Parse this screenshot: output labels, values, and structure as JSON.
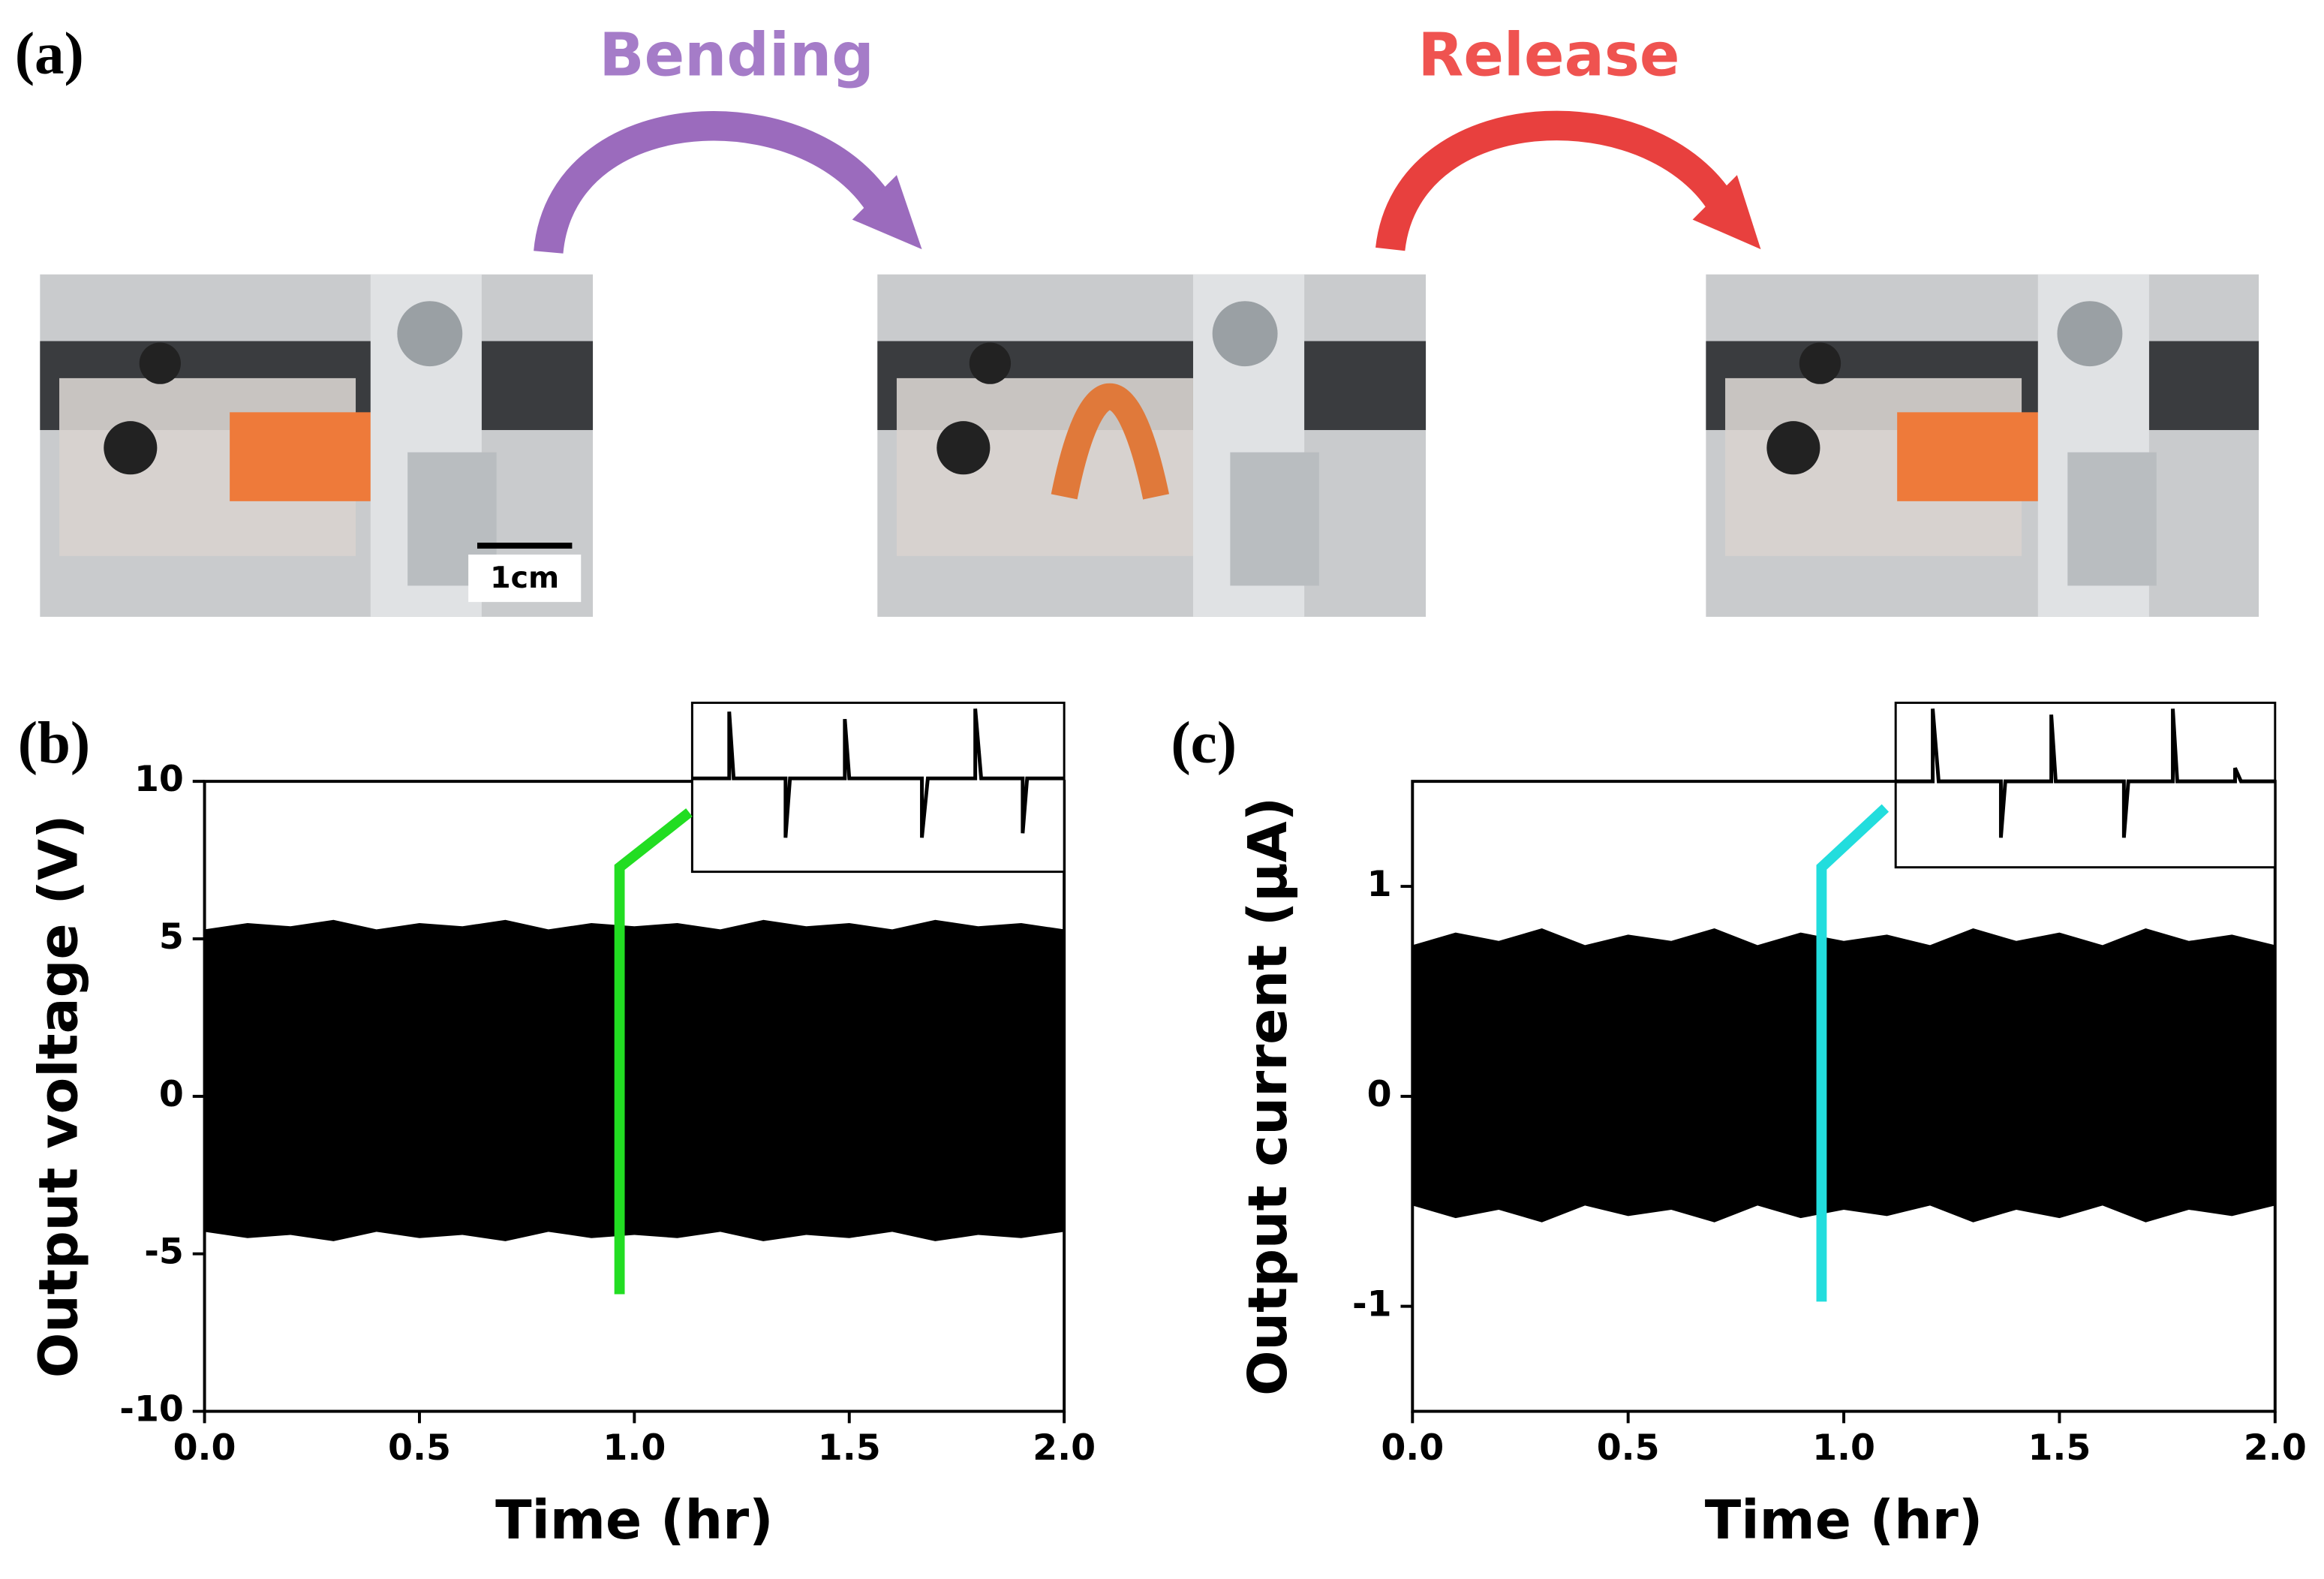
{
  "panel_a": {
    "label": "(a)",
    "bending": "Bending",
    "release": "Release",
    "scale_bar": "1cm"
  },
  "chart_data": [
    {
      "type": "area",
      "panel_label": "(b)",
      "xlabel": "Time (hr)",
      "ylabel": "Output voltage (V)",
      "xlim": [
        0,
        2
      ],
      "ylim": [
        -10,
        10
      ],
      "xticks": [
        {
          "value": 0,
          "label": "0.0"
        },
        0.5,
        {
          "value": 1,
          "label": "1.0"
        },
        1.5,
        {
          "value": 2,
          "label": "2.0"
        }
      ],
      "yticks": [
        -10,
        -5,
        0,
        5,
        10
      ],
      "color": "#000000",
      "x": [
        0,
        0.1,
        0.2,
        0.3,
        0.4,
        0.5,
        0.6,
        0.7,
        0.8,
        0.9,
        1.0,
        1.1,
        1.2,
        1.3,
        1.4,
        1.5,
        1.6,
        1.7,
        1.8,
        1.9,
        2.0
      ],
      "upper": [
        5.3,
        5.5,
        5.4,
        5.6,
        5.3,
        5.5,
        5.4,
        5.6,
        5.3,
        5.5,
        5.4,
        5.5,
        5.3,
        5.6,
        5.4,
        5.5,
        5.3,
        5.6,
        5.4,
        5.5,
        5.3
      ],
      "lower": [
        -4.3,
        -4.5,
        -4.4,
        -4.6,
        -4.3,
        -4.5,
        -4.4,
        -4.6,
        -4.3,
        -4.5,
        -4.4,
        -4.5,
        -4.3,
        -4.6,
        -4.4,
        -4.5,
        -4.3,
        -4.6,
        -4.4,
        -4.5,
        -4.3
      ]
    },
    {
      "type": "area",
      "panel_label": "(c)",
      "xlabel": "Time (hr)",
      "ylabel": "Output current (μA)",
      "xlim": [
        0,
        2
      ],
      "ylim": [
        -1.5,
        1.5
      ],
      "xticks": [
        {
          "value": 0,
          "label": "0.0"
        },
        0.5,
        {
          "value": 1,
          "label": "1.0"
        },
        1.5,
        {
          "value": 2,
          "label": "2.0"
        }
      ],
      "yticks": [
        -1,
        0,
        1
      ],
      "color": "#000000",
      "x": [
        0,
        0.1,
        0.2,
        0.3,
        0.4,
        0.5,
        0.6,
        0.7,
        0.8,
        0.9,
        1.0,
        1.1,
        1.2,
        1.3,
        1.4,
        1.5,
        1.6,
        1.7,
        1.8,
        1.9,
        2.0
      ],
      "upper": [
        0.72,
        0.78,
        0.74,
        0.8,
        0.72,
        0.77,
        0.74,
        0.8,
        0.72,
        0.78,
        0.74,
        0.77,
        0.72,
        0.8,
        0.74,
        0.78,
        0.72,
        0.8,
        0.74,
        0.77,
        0.72
      ],
      "lower": [
        -0.52,
        -0.58,
        -0.54,
        -0.6,
        -0.52,
        -0.57,
        -0.54,
        -0.6,
        -0.52,
        -0.58,
        -0.54,
        -0.57,
        -0.52,
        -0.6,
        -0.54,
        -0.58,
        -0.52,
        -0.6,
        -0.54,
        -0.57,
        -0.52
      ]
    }
  ]
}
